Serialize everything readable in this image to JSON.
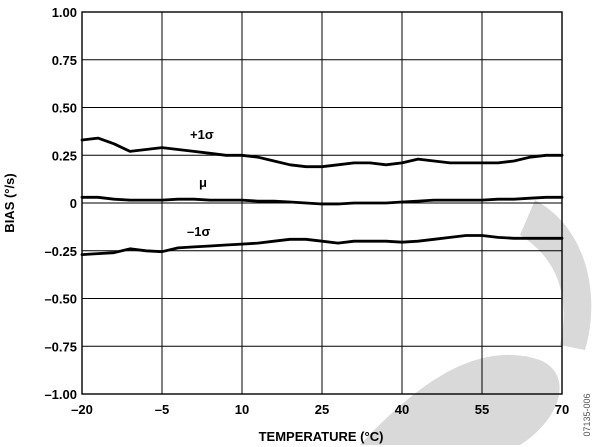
{
  "chart_data": {
    "type": "line",
    "xlabel": "TEMPERATURE (°C)",
    "ylabel": "BIAS (°/s)",
    "xlim": [
      -20,
      70
    ],
    "ylim": [
      -1.0,
      1.0
    ],
    "x_ticks": [
      -20,
      -5,
      10,
      25,
      40,
      55,
      70
    ],
    "x_tick_labels": [
      "–20",
      "–5",
      "10",
      "25",
      "40",
      "55",
      "70"
    ],
    "y_ticks": [
      1.0,
      0.75,
      0.5,
      0.25,
      0,
      -0.25,
      -0.5,
      -0.75,
      -1.0
    ],
    "y_tick_labels": [
      "1.00",
      "0.75",
      "0.50",
      "0.25",
      "0",
      "–0.25",
      "–0.50",
      "–0.75",
      "–1.00"
    ],
    "grid": true,
    "series": [
      {
        "name": "+1σ",
        "x": [
          -20,
          -17,
          -14,
          -11,
          -8,
          -5,
          -2,
          1,
          4,
          7,
          10,
          13,
          16,
          19,
          22,
          25,
          28,
          31,
          34,
          37,
          40,
          43,
          46,
          49,
          52,
          55,
          58,
          61,
          64,
          67,
          70
        ],
        "y": [
          0.33,
          0.34,
          0.31,
          0.27,
          0.28,
          0.29,
          0.28,
          0.27,
          0.26,
          0.25,
          0.25,
          0.24,
          0.22,
          0.2,
          0.19,
          0.19,
          0.2,
          0.21,
          0.21,
          0.2,
          0.21,
          0.23,
          0.22,
          0.21,
          0.21,
          0.21,
          0.21,
          0.22,
          0.24,
          0.25,
          0.25
        ]
      },
      {
        "name": "μ",
        "x": [
          -20,
          -17,
          -14,
          -11,
          -8,
          -5,
          -2,
          1,
          4,
          7,
          10,
          13,
          16,
          19,
          22,
          25,
          28,
          31,
          34,
          37,
          40,
          43,
          46,
          49,
          52,
          55,
          58,
          61,
          64,
          67,
          70
        ],
        "y": [
          0.03,
          0.03,
          0.02,
          0.015,
          0.015,
          0.015,
          0.02,
          0.02,
          0.015,
          0.015,
          0.015,
          0.01,
          0.01,
          0.005,
          0.0,
          -0.005,
          -0.005,
          0.0,
          0.0,
          0.0,
          0.005,
          0.01,
          0.015,
          0.015,
          0.015,
          0.015,
          0.02,
          0.02,
          0.025,
          0.03,
          0.03
        ]
      },
      {
        "name": "–1σ",
        "x": [
          -20,
          -17,
          -14,
          -11,
          -8,
          -5,
          -2,
          1,
          4,
          7,
          10,
          13,
          16,
          19,
          22,
          25,
          28,
          31,
          34,
          37,
          40,
          43,
          46,
          49,
          52,
          55,
          58,
          61,
          64,
          67,
          70
        ],
        "y": [
          -0.27,
          -0.265,
          -0.26,
          -0.24,
          -0.25,
          -0.255,
          -0.235,
          -0.23,
          -0.225,
          -0.22,
          -0.215,
          -0.21,
          -0.2,
          -0.19,
          -0.19,
          -0.2,
          -0.21,
          -0.2,
          -0.2,
          -0.2,
          -0.205,
          -0.2,
          -0.19,
          -0.18,
          -0.17,
          -0.17,
          -0.18,
          -0.185,
          -0.185,
          -0.185,
          -0.185
        ]
      }
    ]
  },
  "annotations": {
    "plus_sigma": "+1σ",
    "mu": "μ",
    "minus_sigma": "–1σ",
    "doc_code": "07135-006"
  }
}
